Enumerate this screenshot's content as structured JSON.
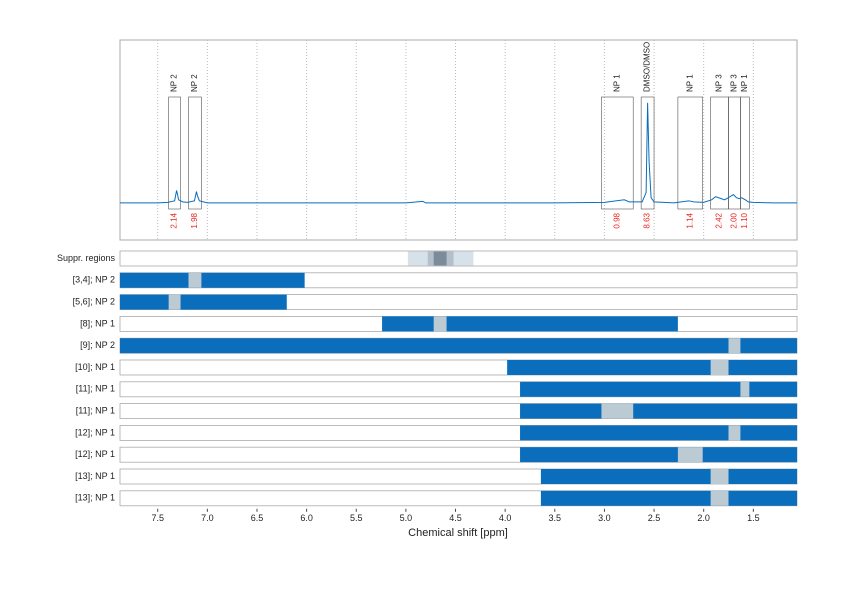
{
  "chart_data": [
    {
      "type": "line",
      "xlim": [
        7.88,
        1.06
      ],
      "ylim": [
        -36,
        158
      ],
      "grid": true,
      "xticks": [
        7.5,
        {
          "value": 7,
          "label": "7.0"
        },
        6.5,
        {
          "value": 6,
          "label": "6.0"
        },
        5.5,
        {
          "value": 5,
          "label": "5.0"
        },
        4.5,
        {
          "value": 4,
          "label": "4.0"
        },
        3.5,
        {
          "value": 3,
          "label": "3.0"
        },
        2.5,
        {
          "value": 2,
          "label": "2.0"
        },
        1.5
      ],
      "series": [
        {
          "color": "#0a6ebd",
          "x": [
            7.88,
            7.5,
            7.4,
            7.33,
            7.31,
            7.3,
            7.29,
            7.25,
            7.2,
            7.13,
            7.11,
            7.1,
            7.08,
            7.0,
            6.0,
            5.0,
            4.83,
            4.8,
            3.5,
            3.0,
            2.8,
            2.75,
            2.62,
            2.58,
            2.565,
            2.55,
            2.53,
            2.5,
            2.3,
            2.15,
            2.1,
            2.0,
            1.92,
            1.88,
            1.85,
            1.82,
            1.79,
            1.75,
            1.72,
            1.7,
            1.67,
            1.64,
            1.62,
            1.58,
            1.55,
            1.5,
            1.3,
            1.06
          ],
          "values": [
            0,
            0,
            0.5,
            2,
            12,
            8,
            3,
            1,
            0.5,
            2,
            11,
            7,
            2,
            0,
            0,
            0,
            1.5,
            0,
            0,
            0.5,
            3,
            1,
            1,
            10,
            97,
            40,
            5,
            1,
            0,
            2,
            1,
            0.5,
            3,
            6,
            5,
            4,
            3,
            5,
            7,
            8,
            5,
            4,
            5,
            3,
            1,
            0.5,
            0,
            0
          ]
        }
      ],
      "regions": [
        {
          "label": "NP 2",
          "start": 7.39,
          "end": 7.27,
          "integral": 2.14
        },
        {
          "label": "NP 2",
          "start": 7.19,
          "end": 7.06,
          "integral": 1.98
        },
        {
          "label": "NP 1",
          "start": 3.03,
          "end": 2.71,
          "integral": 0.98
        },
        {
          "label": "DMSO/DMSO",
          "start": 2.63,
          "end": 2.5,
          "integral": 8.63
        },
        {
          "label": "NP 1",
          "start": 2.26,
          "end": 2.01,
          "integral": 1.14
        },
        {
          "label": "NP 3",
          "start": 1.93,
          "end": 1.75,
          "integral": 2.42
        },
        {
          "label": "NP 3",
          "start": 1.75,
          "end": 1.63,
          "integral": {
            "value": 2,
            "label": "2.00"
          }
        },
        {
          "label": "NP 1",
          "start": 1.63,
          "end": 1.54,
          "integral": {
            "value": 1.1,
            "label": "1.10"
          }
        }
      ]
    },
    {
      "type": "range",
      "x_label": "Chemical shift [ppm]",
      "xlim": [
        7.88,
        1.06
      ],
      "xticks": [
        7.5,
        {
          "value": 7,
          "label": "7.0"
        },
        6.5,
        {
          "value": 6,
          "label": "6.0"
        },
        5.5,
        {
          "value": 5,
          "label": "5.0"
        },
        4.5,
        {
          "value": 4,
          "label": "4.0"
        },
        3.5,
        {
          "value": 3,
          "label": "3.0"
        },
        2.5,
        {
          "value": 2,
          "label": "2.0"
        },
        1.5
      ],
      "color": "#0a6ebd",
      "gap_color": "#bccad3",
      "suppressed": {
        "label": "Suppr. regions",
        "bands": [
          {
            "start": 4.98,
            "end": 4.32,
            "color": "#d7e1e9"
          },
          {
            "start": 4.78,
            "end": 4.52,
            "color": "#b3c0cb"
          },
          {
            "start": 4.72,
            "end": 4.59,
            "color": "#7b8b99"
          }
        ]
      },
      "rows": [
        {
          "label": "[3,4]; NP 2",
          "start": 7.88,
          "end": 6.02,
          "gaps": [
            [
              7.19,
              7.06
            ]
          ]
        },
        {
          "label": "[5,6]; NP 2",
          "start": 7.88,
          "end": 6.2,
          "gaps": [
            [
              7.39,
              7.27
            ]
          ]
        },
        {
          "label": "[8]; NP 1",
          "start": 5.24,
          "end": 2.26,
          "gaps": [
            [
              4.72,
              4.59
            ]
          ]
        },
        {
          "label": "[9]; NP 2",
          "start": 7.88,
          "end": 1.06,
          "gaps": [
            [
              1.75,
              1.63
            ]
          ]
        },
        {
          "label": "[10]; NP 1",
          "start": 3.98,
          "end": 1.06,
          "gaps": [
            [
              1.93,
              1.75
            ]
          ]
        },
        {
          "label": "[11]; NP 1",
          "start": 3.85,
          "end": 1.06,
          "gaps": [
            [
              1.63,
              1.54
            ]
          ]
        },
        {
          "label": "[11]; NP 1",
          "start": 3.85,
          "end": 1.06,
          "gaps": [
            [
              3.03,
              2.71
            ]
          ]
        },
        {
          "label": "[12]; NP 1",
          "start": 3.85,
          "end": 1.06,
          "gaps": [
            [
              1.75,
              1.63
            ]
          ]
        },
        {
          "label": "[12]; NP 1",
          "start": 3.85,
          "end": 1.06,
          "gaps": [
            [
              2.26,
              2.01
            ]
          ]
        },
        {
          "label": "[13]; NP 1",
          "start": 3.64,
          "end": 1.06,
          "gaps": [
            [
              1.93,
              1.75
            ]
          ]
        },
        {
          "label": "[13]; NP 1",
          "start": 3.64,
          "end": 1.06,
          "gaps": [
            [
              1.93,
              1.75
            ]
          ]
        }
      ]
    }
  ]
}
